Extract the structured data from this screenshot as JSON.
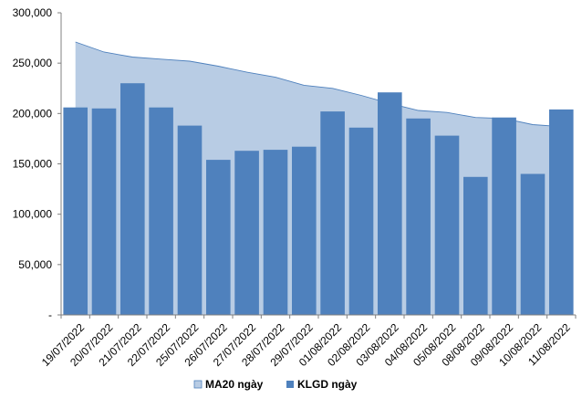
{
  "chart_data": {
    "type": "bar",
    "categories": [
      "19/07/2022",
      "20/07/2022",
      "21/07/2022",
      "22/07/2022",
      "25/07/2022",
      "26/07/2022",
      "27/07/2022",
      "28/07/2022",
      "29/07/2022",
      "01/08/2022",
      "02/08/2022",
      "03/08/2022",
      "04/08/2022",
      "05/08/2022",
      "08/08/2022",
      "09/08/2022",
      "10/08/2022",
      "11/08/2022"
    ],
    "series": [
      {
        "name": "MA20 ngày",
        "kind": "area",
        "color": "#b8cce4",
        "line_color": "#4f81bd",
        "values": [
          271000,
          261000,
          256000,
          254000,
          252000,
          247000,
          241000,
          236000,
          228000,
          225000,
          218000,
          210000,
          203000,
          201000,
          196000,
          195000,
          189000,
          187000
        ]
      },
      {
        "name": "KLGD ngày",
        "kind": "bar",
        "color": "#4f81bd",
        "values": [
          206000,
          205000,
          230000,
          206000,
          188000,
          154000,
          163000,
          164000,
          167000,
          202000,
          186000,
          221000,
          195000,
          178000,
          137000,
          196000,
          140000,
          204000
        ]
      }
    ],
    "y_ticks": [
      "-",
      "50,000",
      "100,000",
      "150,000",
      "200,000",
      "250,000",
      "300,000"
    ],
    "ylim": [
      0,
      300000
    ],
    "grid": false,
    "legend_position": "bottom"
  }
}
